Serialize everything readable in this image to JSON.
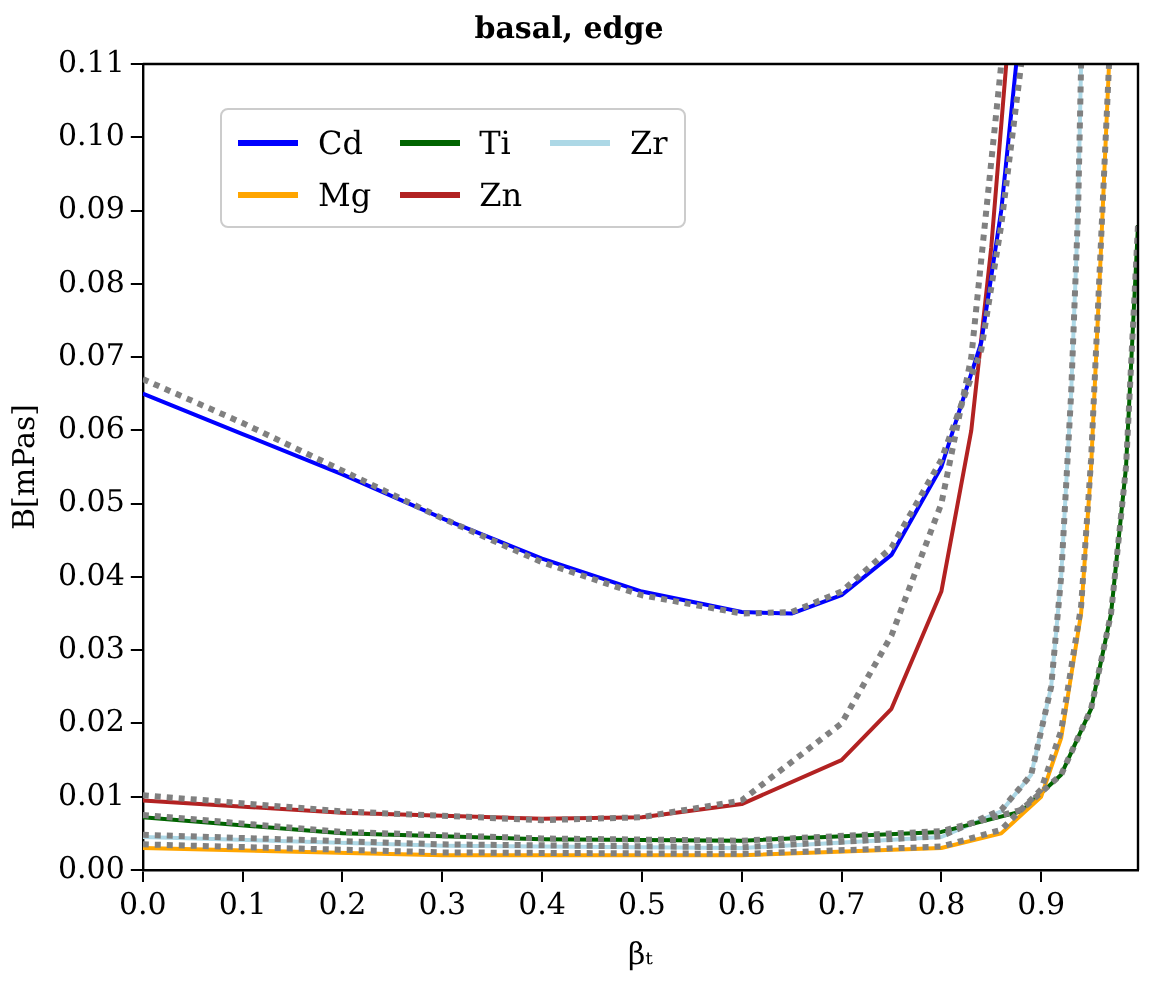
{
  "chart_data": {
    "type": "line",
    "title": "basal, edge",
    "xlabel": "βₜ",
    "ylabel": "B[mPas]",
    "xlim": [
      0,
      0.997
    ],
    "xticks": [
      {
        "value": 0,
        "label": "0.0"
      },
      {
        "value": 0.1,
        "label": "0.1"
      },
      {
        "value": 0.2,
        "label": "0.2"
      },
      {
        "value": 0.3,
        "label": "0.3"
      },
      {
        "value": 0.4,
        "label": "0.4"
      },
      {
        "value": 0.5,
        "label": "0.5"
      },
      {
        "value": 0.6,
        "label": "0.6"
      },
      {
        "value": 0.7,
        "label": "0.7"
      },
      {
        "value": 0.8,
        "label": "0.8"
      },
      {
        "value": 0.9,
        "label": "0.9"
      }
    ],
    "ylim": [
      0,
      0.11
    ],
    "yticks": [
      {
        "value": 0,
        "label": "0.00"
      },
      {
        "value": 0.01,
        "label": "0.01"
      },
      {
        "value": 0.02,
        "label": "0.02"
      },
      {
        "value": 0.03,
        "label": "0.03"
      },
      {
        "value": 0.04,
        "label": "0.04"
      },
      {
        "value": 0.05,
        "label": "0.05"
      },
      {
        "value": 0.06,
        "label": "0.06"
      },
      {
        "value": 0.07,
        "label": "0.07"
      },
      {
        "value": 0.08,
        "label": "0.08"
      },
      {
        "value": 0.09,
        "label": "0.09"
      },
      {
        "value": 0.1,
        "label": "0.10"
      },
      {
        "value": 0.11,
        "label": "0.11"
      }
    ],
    "grid": false,
    "legend": "top left",
    "marker": "none",
    "series": [
      {
        "name": "Cd",
        "color": "#0000ff",
        "line_style": "solid",
        "x": [
          0,
          0.1,
          0.2,
          0.3,
          0.4,
          0.5,
          0.6,
          0.65,
          0.7,
          0.75,
          0.8,
          0.84,
          0.86,
          0.875
        ],
        "values": [
          0.065,
          0.0595,
          0.054,
          0.048,
          0.0425,
          0.038,
          0.0352,
          0.035,
          0.0375,
          0.043,
          0.055,
          0.072,
          0.09,
          0.11
        ]
      },
      {
        "name": "Mg",
        "color": "#ffa500",
        "line_style": "solid",
        "x": [
          0,
          0.3,
          0.6,
          0.8,
          0.86,
          0.9,
          0.92,
          0.94,
          0.95,
          0.96,
          0.968
        ],
        "values": [
          0.003,
          0.002,
          0.002,
          0.003,
          0.005,
          0.01,
          0.018,
          0.035,
          0.055,
          0.085,
          0.11
        ]
      },
      {
        "name": "Ti",
        "color": "#006400",
        "line_style": "solid",
        "x": [
          0,
          0.2,
          0.4,
          0.6,
          0.8,
          0.88,
          0.92,
          0.95,
          0.97,
          0.985,
          0.997
        ],
        "values": [
          0.0072,
          0.005,
          0.0042,
          0.004,
          0.0052,
          0.008,
          0.013,
          0.022,
          0.035,
          0.055,
          0.088
        ]
      },
      {
        "name": "Zn",
        "color": "#b22222",
        "line_style": "solid",
        "x": [
          0,
          0.2,
          0.4,
          0.5,
          0.6,
          0.7,
          0.75,
          0.8,
          0.83,
          0.85,
          0.865
        ],
        "values": [
          0.0095,
          0.0078,
          0.007,
          0.0072,
          0.009,
          0.015,
          0.022,
          0.038,
          0.06,
          0.085,
          0.11
        ]
      },
      {
        "name": "Zr",
        "color": "#add8e6",
        "line_style": "solid",
        "x": [
          0,
          0.3,
          0.6,
          0.8,
          0.86,
          0.89,
          0.91,
          0.92,
          0.93,
          0.937,
          0.94
        ],
        "values": [
          0.0045,
          0.0033,
          0.003,
          0.0045,
          0.008,
          0.013,
          0.025,
          0.04,
          0.065,
          0.09,
          0.11
        ]
      },
      {
        "color": "#808080",
        "line_style": "dotted",
        "x": [
          0,
          0.1,
          0.2,
          0.3,
          0.4,
          0.5,
          0.6,
          0.65,
          0.7,
          0.75,
          0.8,
          0.84,
          0.86,
          0.88
        ],
        "values": [
          0.067,
          0.061,
          0.0545,
          0.048,
          0.042,
          0.0375,
          0.035,
          0.0352,
          0.038,
          0.044,
          0.056,
          0.071,
          0.088,
          0.11
        ]
      },
      {
        "color": "#808080",
        "line_style": "dotted",
        "x": [
          0,
          0.3,
          0.6,
          0.8,
          0.86,
          0.9,
          0.92,
          0.94,
          0.95,
          0.96,
          0.968
        ],
        "values": [
          0.0035,
          0.0024,
          0.0022,
          0.0032,
          0.0055,
          0.011,
          0.019,
          0.036,
          0.056,
          0.086,
          0.11
        ]
      },
      {
        "color": "#808080",
        "line_style": "dotted",
        "x": [
          0,
          0.2,
          0.4,
          0.6,
          0.8,
          0.88,
          0.92,
          0.95,
          0.97,
          0.985,
          0.997
        ],
        "values": [
          0.0075,
          0.0052,
          0.0043,
          0.004,
          0.0053,
          0.0082,
          0.013,
          0.022,
          0.035,
          0.055,
          0.088
        ]
      },
      {
        "color": "#808080",
        "line_style": "dotted",
        "x": [
          0,
          0.2,
          0.4,
          0.5,
          0.6,
          0.7,
          0.75,
          0.8,
          0.83,
          0.845,
          0.86
        ],
        "values": [
          0.0102,
          0.008,
          0.0068,
          0.0072,
          0.0095,
          0.02,
          0.032,
          0.05,
          0.07,
          0.09,
          0.11
        ]
      },
      {
        "color": "#808080",
        "line_style": "dotted",
        "x": [
          0,
          0.3,
          0.6,
          0.8,
          0.86,
          0.89,
          0.91,
          0.92,
          0.93,
          0.937,
          0.94
        ],
        "values": [
          0.0048,
          0.0035,
          0.0031,
          0.0046,
          0.0082,
          0.013,
          0.025,
          0.04,
          0.065,
          0.09,
          0.11
        ]
      }
    ]
  }
}
